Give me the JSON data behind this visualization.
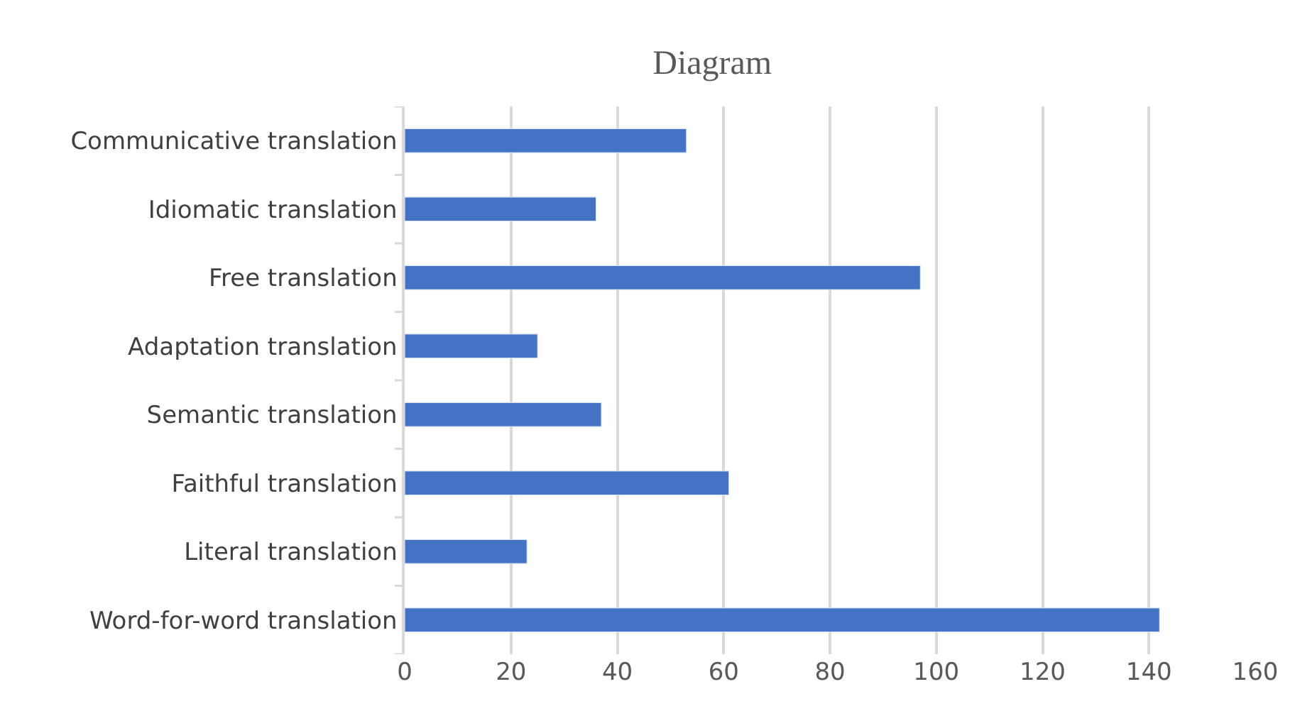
{
  "chart_data": {
    "type": "bar",
    "orientation": "horizontal",
    "title": "Diagram",
    "categories": [
      "Communicative translation",
      "Idiomatic translation",
      "Free translation",
      "Adaptation translation",
      "Semantic translation",
      "Faithful translation",
      "Literal translation",
      "Word-for-word translation"
    ],
    "values": [
      53,
      36,
      97,
      25,
      37,
      61,
      23,
      142
    ],
    "color": "#4472c4",
    "xlim": [
      0,
      160
    ],
    "xticks": [
      0,
      20,
      40,
      60,
      80,
      100,
      120,
      140,
      160
    ],
    "grid": "x"
  }
}
